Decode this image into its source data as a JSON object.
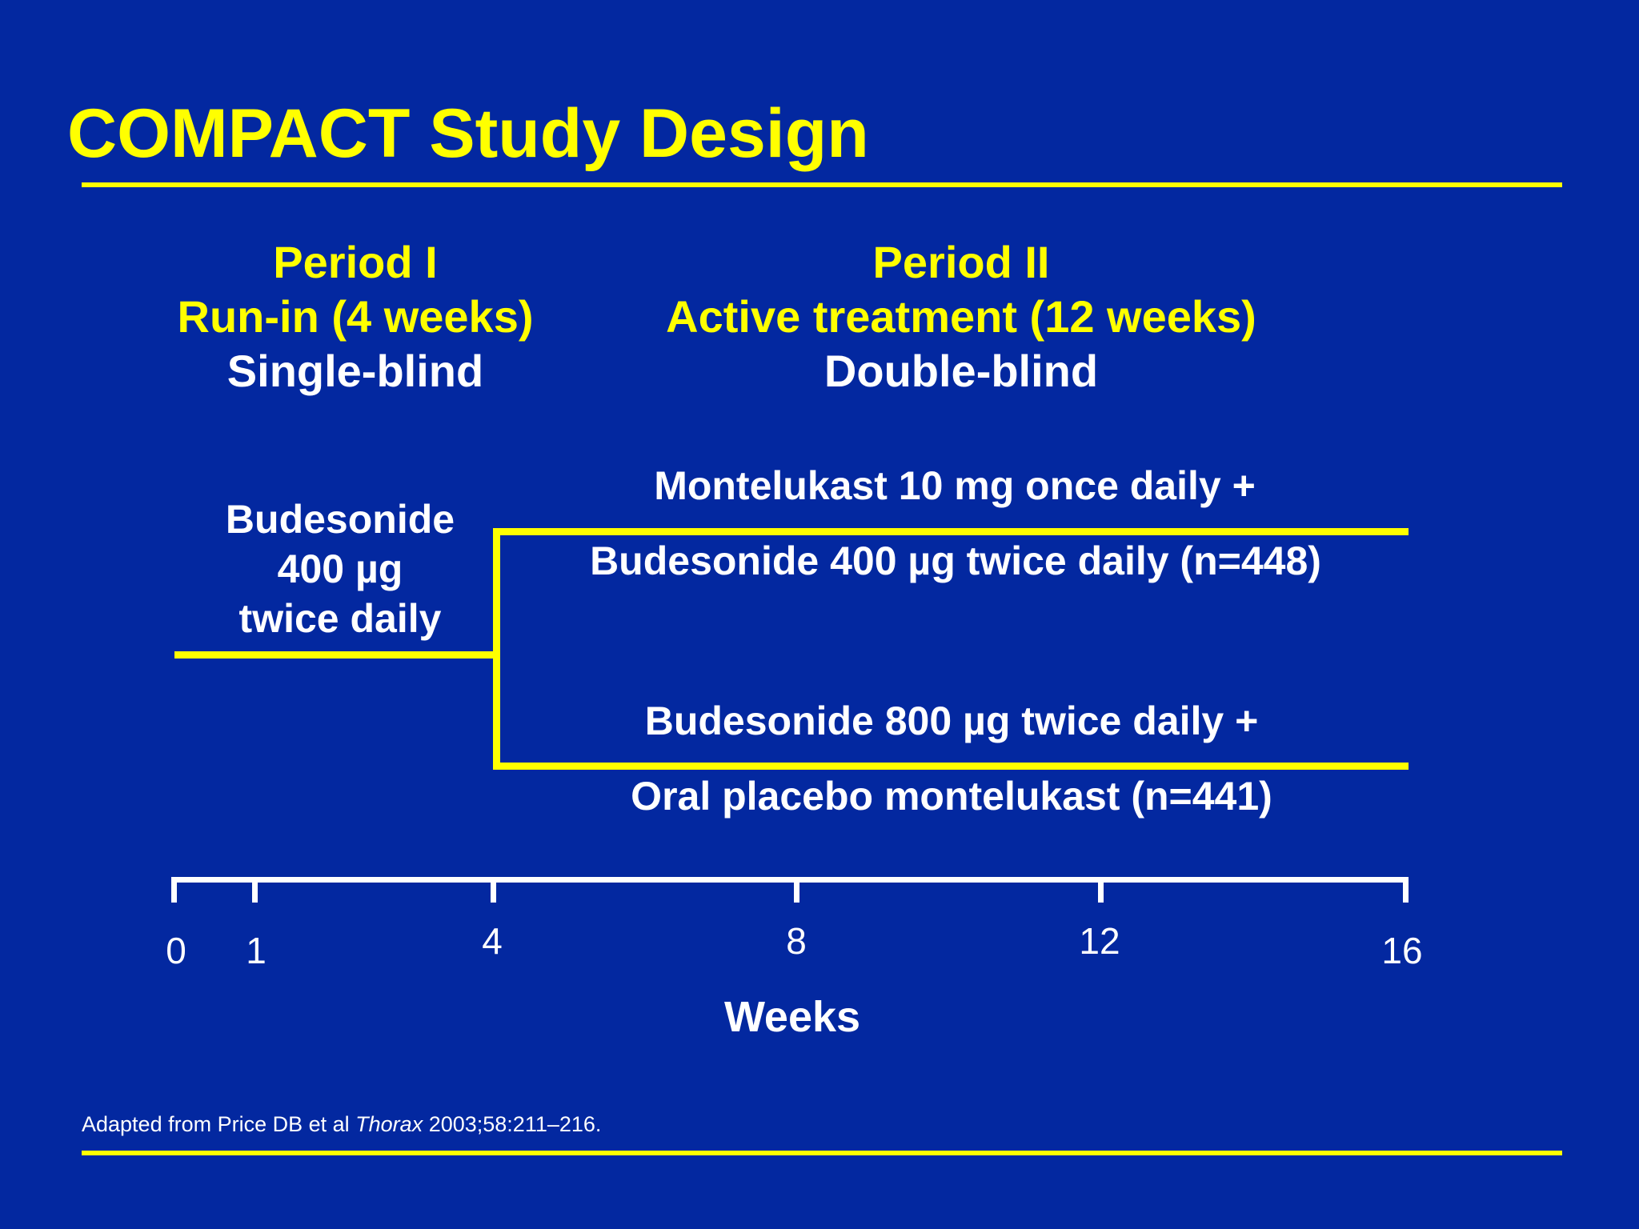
{
  "title": "COMPACT Study Design",
  "period1": {
    "name": "Period I",
    "duration": "Run-in (4 weeks)",
    "blinding": "Single-blind"
  },
  "period2": {
    "name": "Period II",
    "duration": "Active treatment (12 weeks)",
    "blinding": "Double-blind"
  },
  "runin_treatment": {
    "line1": "Budesonide",
    "line2": "400 µg",
    "line3": "twice daily"
  },
  "arm1": {
    "line1": "Montelukast 10 mg once daily +",
    "line2": "Budesonide 400 µg twice daily (n=448)"
  },
  "arm2": {
    "line1": "Budesonide 800 µg twice daily +",
    "line2": "Oral placebo montelukast (n=441)"
  },
  "axis": {
    "label": "Weeks",
    "ticks": [
      "0",
      "1",
      "4",
      "8",
      "12",
      "16"
    ]
  },
  "footnote": {
    "prefix": "Adapted from Price DB et al ",
    "journal": "Thorax",
    "suffix": " 2003;58:211–216."
  },
  "colors": {
    "background": "#0328A0",
    "accent": "#FFFF00",
    "text": "#FFFFFF"
  }
}
